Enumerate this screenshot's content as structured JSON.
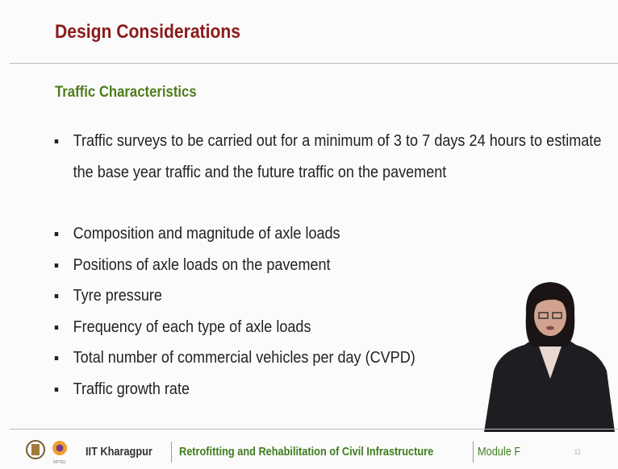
{
  "header": {
    "title": "Design Considerations"
  },
  "section": {
    "title": "Traffic Characteristics",
    "bullets": [
      "Traffic surveys to be carried out for a minimum of 3 to 7 days 24 hours to estimate the base year traffic and the future traffic on the pavement",
      "Composition and magnitude of axle loads",
      "Positions of axle loads on the pavement",
      "Tyre pressure",
      "Frequency of each type of axle loads",
      "Total number of commercial vehicles per day (CVPD)",
      "Traffic growth rate"
    ]
  },
  "footer": {
    "institute": "IIT Kharagpur",
    "course": "Retrofitting and Rehabilitation of Civil Infrastructure",
    "module": "Module F",
    "page": "12"
  }
}
